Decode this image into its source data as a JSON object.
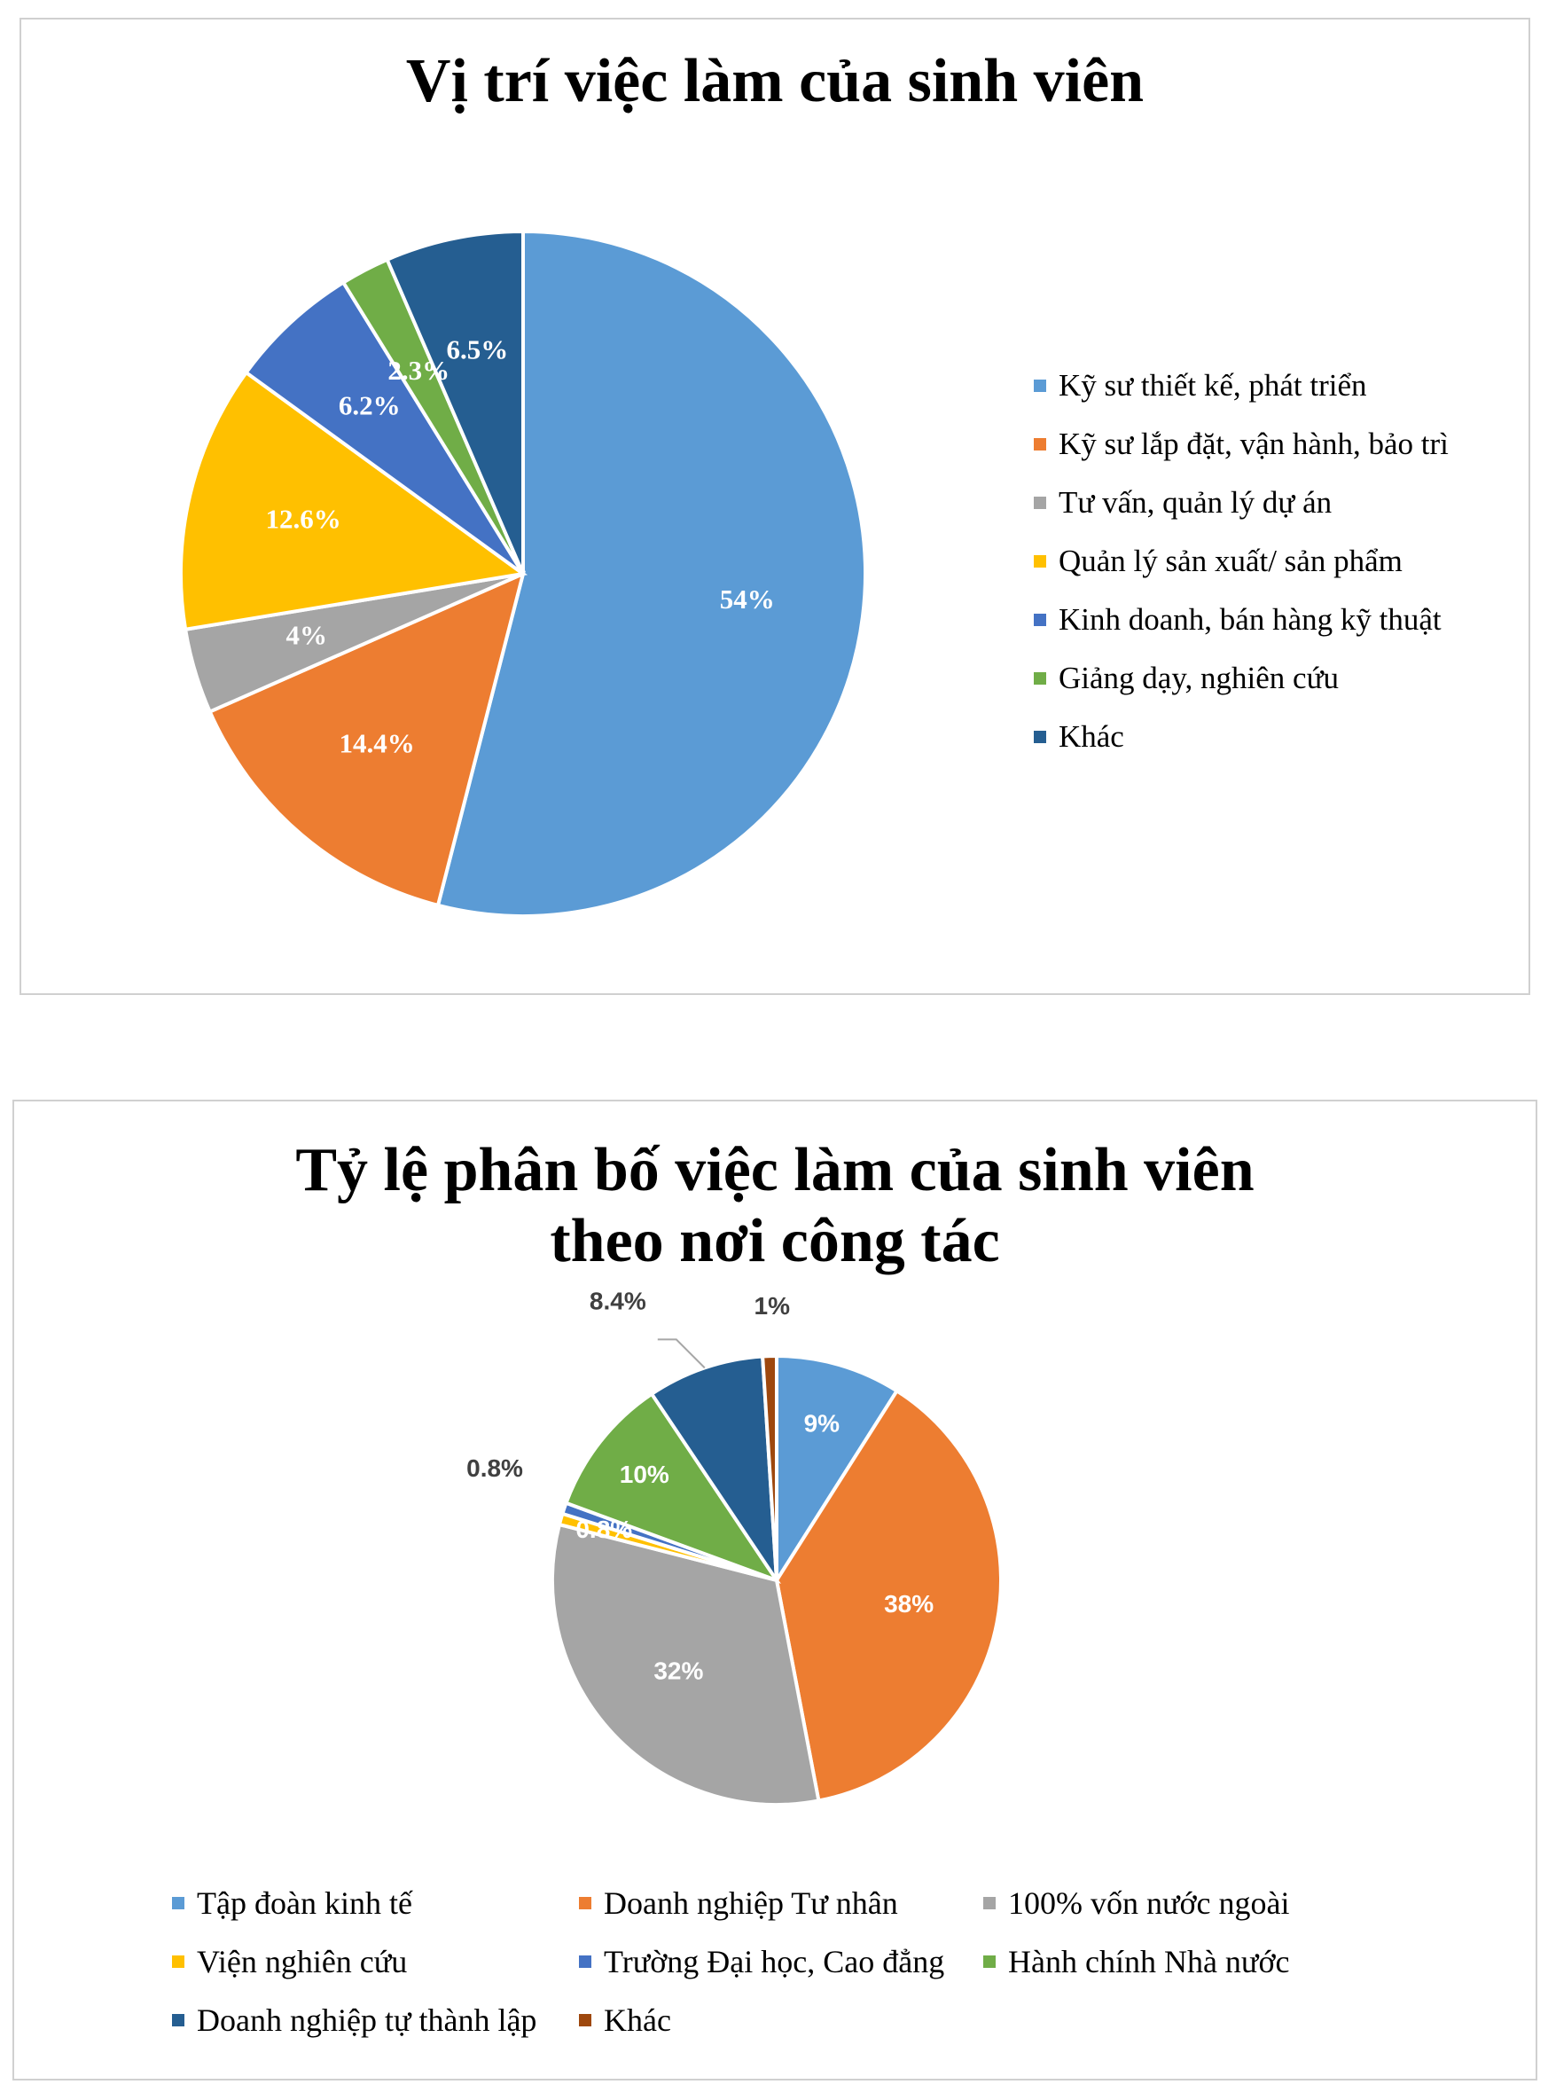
{
  "charts": [
    {
      "id": "chart1",
      "title_lines": [
        "Vị trí việc làm của sinh viên"
      ],
      "chart_data": {
        "type": "pie",
        "title": "Vị trí việc làm của sinh viên",
        "categories": [
          "Kỹ sư thiết kế, phát triển",
          "Kỹ sư lắp đặt, vận hành, bảo trì",
          "Tư vấn, quản lý dự án",
          "Quản lý sản xuất/ sản phẩm",
          "Kinh doanh, bán hàng kỹ thuật",
          "Giảng dạy, nghiên cứu",
          "Khác"
        ],
        "labels": [
          "54%",
          "14.4%",
          "4%",
          "12.6%",
          "6.2%",
          "2.3%",
          "6.5%"
        ],
        "values": [
          54,
          14.4,
          4,
          12.6,
          6.2,
          2.3,
          6.5
        ],
        "colors": [
          "#5B9BD5",
          "#ED7D31",
          "#A5A5A5",
          "#FFC000",
          "#4472C4",
          "#70AD47",
          "#255E91"
        ],
        "legend": "right"
      }
    },
    {
      "id": "chart2",
      "title_lines": [
        "Tỷ lệ phân bố việc làm của sinh viên",
        "theo nơi công tác"
      ],
      "chart_data": {
        "type": "pie",
        "title": "Tỷ lệ phân bố việc làm của sinh viên theo nơi công tác",
        "categories": [
          "Tập đoàn kinh tế",
          "Doanh nghiệp Tư nhân",
          "100% vốn nước ngoài",
          "Viện nghiên cứu",
          "Trường Đại học, Cao đẳng",
          "Hành chính Nhà nước",
          "Doanh nghiệp tự thành lập",
          "Khác"
        ],
        "labels": [
          "9%",
          "38%",
          "32%",
          "0.8%",
          "0.8%",
          "10%",
          "8.4%",
          "1%"
        ],
        "values": [
          9,
          38,
          32,
          0.8,
          0.8,
          10,
          8.4,
          1
        ],
        "colors": [
          "#5B9BD5",
          "#ED7D31",
          "#A5A5A5",
          "#FFC000",
          "#4472C4",
          "#70AD47",
          "#255E91",
          "#9E480E"
        ],
        "legend": "bottom"
      }
    }
  ]
}
